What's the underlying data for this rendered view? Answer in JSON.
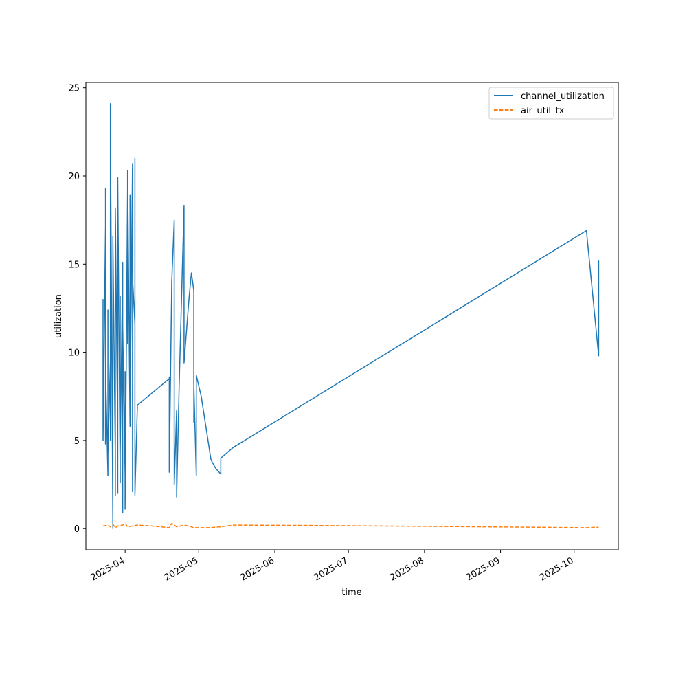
{
  "chart_data": {
    "type": "line",
    "xlabel": "time",
    "ylabel": "utilization",
    "x_axis_type": "date",
    "xlim": [
      "2025-03-16",
      "2025-10-19"
    ],
    "ylim": [
      -1.2,
      25.3
    ],
    "x_ticks": [
      "2025-04-01",
      "2025-05-01",
      "2025-06-01",
      "2025-07-01",
      "2025-08-01",
      "2025-09-01",
      "2025-10-01"
    ],
    "x_tick_labels": [
      "2025-04",
      "2025-05",
      "2025-06",
      "2025-07",
      "2025-08",
      "2025-09",
      "2025-10"
    ],
    "y_ticks": [
      0,
      5,
      10,
      15,
      20,
      25
    ],
    "y_tick_labels": [
      "0",
      "5",
      "10",
      "15",
      "20",
      "25"
    ],
    "grid": false,
    "legend_position": "top-right",
    "series": [
      {
        "name": "channel_utilization",
        "color": "#1f77b4",
        "line_style": "solid",
        "points": [
          [
            "2025-03-23",
            10.5
          ],
          [
            "2025-03-23",
            13.0
          ],
          [
            "2025-03-23",
            5.0
          ],
          [
            "2025-03-24",
            17.2
          ],
          [
            "2025-03-24",
            4.8
          ],
          [
            "2025-03-24",
            19.3
          ],
          [
            "2025-03-24",
            5.5
          ],
          [
            "2025-03-24",
            15.5
          ],
          [
            "2025-03-24",
            9.0
          ],
          [
            "2025-03-25",
            3.0
          ],
          [
            "2025-03-25",
            12.4
          ],
          [
            "2025-03-25",
            4.2
          ],
          [
            "2025-03-26",
            9.5
          ],
          [
            "2025-03-26",
            5.0
          ],
          [
            "2025-03-26",
            24.1
          ],
          [
            "2025-03-26",
            8.0
          ],
          [
            "2025-03-26",
            23.0
          ],
          [
            "2025-03-27",
            0.0
          ],
          [
            "2025-03-27",
            16.6
          ],
          [
            "2025-03-27",
            6.0
          ],
          [
            "2025-03-27",
            16.4
          ],
          [
            "2025-03-28",
            4.0
          ],
          [
            "2025-03-28",
            18.2
          ],
          [
            "2025-03-28",
            1.9
          ],
          [
            "2025-03-28",
            18.1
          ],
          [
            "2025-03-29",
            5.0
          ],
          [
            "2025-03-29",
            19.9
          ],
          [
            "2025-03-29",
            2.0
          ],
          [
            "2025-03-29",
            19.8
          ],
          [
            "2025-03-30",
            2.6
          ],
          [
            "2025-03-30",
            13.2
          ],
          [
            "2025-03-30",
            4.3
          ],
          [
            "2025-03-31",
            15.1
          ],
          [
            "2025-03-31",
            0.9
          ],
          [
            "2025-03-31",
            11.5
          ],
          [
            "2025-04-01",
            3.0
          ],
          [
            "2025-04-01",
            8.9
          ],
          [
            "2025-04-01",
            1.1
          ],
          [
            "2025-04-02",
            19.2
          ],
          [
            "2025-04-02",
            10.5
          ],
          [
            "2025-04-02",
            20.3
          ],
          [
            "2025-04-03",
            5.8
          ],
          [
            "2025-04-03",
            18.9
          ],
          [
            "2025-04-03",
            6.2
          ],
          [
            "2025-04-04",
            20.7
          ],
          [
            "2025-04-04",
            2.1
          ],
          [
            "2025-04-04",
            14.2
          ],
          [
            "2025-04-05",
            11.6
          ],
          [
            "2025-04-05",
            21.0
          ],
          [
            "2025-04-05",
            1.9
          ],
          [
            "2025-04-06",
            7.0
          ],
          [
            "2025-04-19",
            8.5
          ],
          [
            "2025-04-19",
            8.6
          ],
          [
            "2025-04-19",
            3.2
          ],
          [
            "2025-04-20",
            14.0
          ],
          [
            "2025-04-21",
            17.5
          ],
          [
            "2025-04-21",
            2.5
          ],
          [
            "2025-04-22",
            6.7
          ],
          [
            "2025-04-22",
            1.8
          ],
          [
            "2025-04-23",
            8.0
          ],
          [
            "2025-04-25",
            18.3
          ],
          [
            "2025-04-25",
            9.4
          ],
          [
            "2025-04-27",
            13.0
          ],
          [
            "2025-04-28",
            14.5
          ],
          [
            "2025-04-29",
            13.5
          ],
          [
            "2025-04-29",
            6.0
          ],
          [
            "2025-04-29",
            8.2
          ],
          [
            "2025-04-30",
            3.0
          ],
          [
            "2025-04-30",
            8.7
          ],
          [
            "2025-05-02",
            7.5
          ],
          [
            "2025-05-06",
            3.9
          ],
          [
            "2025-05-08",
            3.4
          ],
          [
            "2025-05-10",
            3.1
          ],
          [
            "2025-05-10",
            4.0
          ],
          [
            "2025-05-15",
            4.6
          ],
          [
            "2025-10-06",
            16.9
          ],
          [
            "2025-10-11",
            9.8
          ],
          [
            "2025-10-11",
            15.2
          ]
        ]
      },
      {
        "name": "air_util_tx",
        "color": "#ff7f0e",
        "line_style": "dashed",
        "points": [
          [
            "2025-03-23",
            0.15
          ],
          [
            "2025-03-25",
            0.2
          ],
          [
            "2025-03-26",
            0.1
          ],
          [
            "2025-03-27",
            0.25
          ],
          [
            "2025-03-28",
            0.05
          ],
          [
            "2025-03-29",
            0.15
          ],
          [
            "2025-03-31",
            0.2
          ],
          [
            "2025-04-01",
            0.3
          ],
          [
            "2025-04-02",
            0.1
          ],
          [
            "2025-04-04",
            0.15
          ],
          [
            "2025-04-06",
            0.2
          ],
          [
            "2025-04-12",
            0.15
          ],
          [
            "2025-04-19",
            0.05
          ],
          [
            "2025-04-20",
            0.3
          ],
          [
            "2025-04-22",
            0.1
          ],
          [
            "2025-04-25",
            0.2
          ],
          [
            "2025-04-27",
            0.15
          ],
          [
            "2025-04-29",
            0.05
          ],
          [
            "2025-05-05",
            0.05
          ],
          [
            "2025-05-10",
            0.1
          ],
          [
            "2025-05-15",
            0.2
          ],
          [
            "2025-06-15",
            0.18
          ],
          [
            "2025-08-01",
            0.13
          ],
          [
            "2025-09-15",
            0.08
          ],
          [
            "2025-10-06",
            0.05
          ],
          [
            "2025-10-11",
            0.08
          ]
        ]
      }
    ]
  }
}
